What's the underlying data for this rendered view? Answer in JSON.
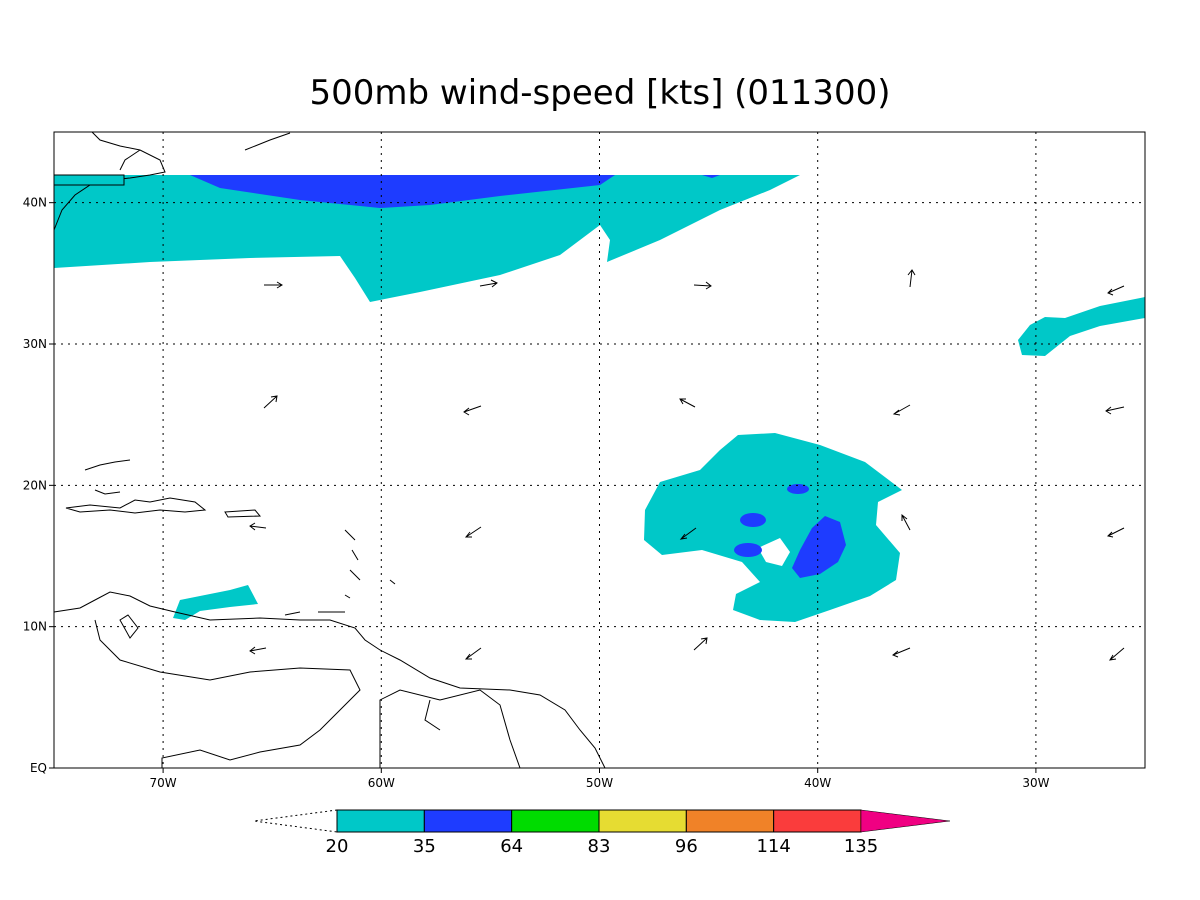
{
  "map": {
    "title": "500mb wind-speed [kts] (011300)",
    "lon_range": [
      -75,
      -25
    ],
    "lat_range": [
      0,
      45
    ],
    "lon_ticks": [
      {
        "value": -70,
        "label": "70W"
      },
      {
        "value": -60,
        "label": "60W"
      },
      {
        "value": -50,
        "label": "50W"
      },
      {
        "value": -40,
        "label": "40W"
      },
      {
        "value": -30,
        "label": "30W"
      }
    ],
    "lat_ticks": [
      {
        "value": 0,
        "label": "EQ"
      },
      {
        "value": 10,
        "label": "10N"
      },
      {
        "value": 20,
        "label": "20N"
      },
      {
        "value": 30,
        "label": "30N"
      },
      {
        "value": 40,
        "label": "40N"
      }
    ],
    "grid": true
  },
  "colorbar": {
    "levels": [
      20,
      35,
      64,
      83,
      96,
      114,
      135
    ],
    "colors": [
      "#00c8c8",
      "#1e3cff",
      "#00dc00",
      "#e6dc32",
      "#f08228",
      "#fa3c3c",
      "#f00082"
    ]
  }
}
